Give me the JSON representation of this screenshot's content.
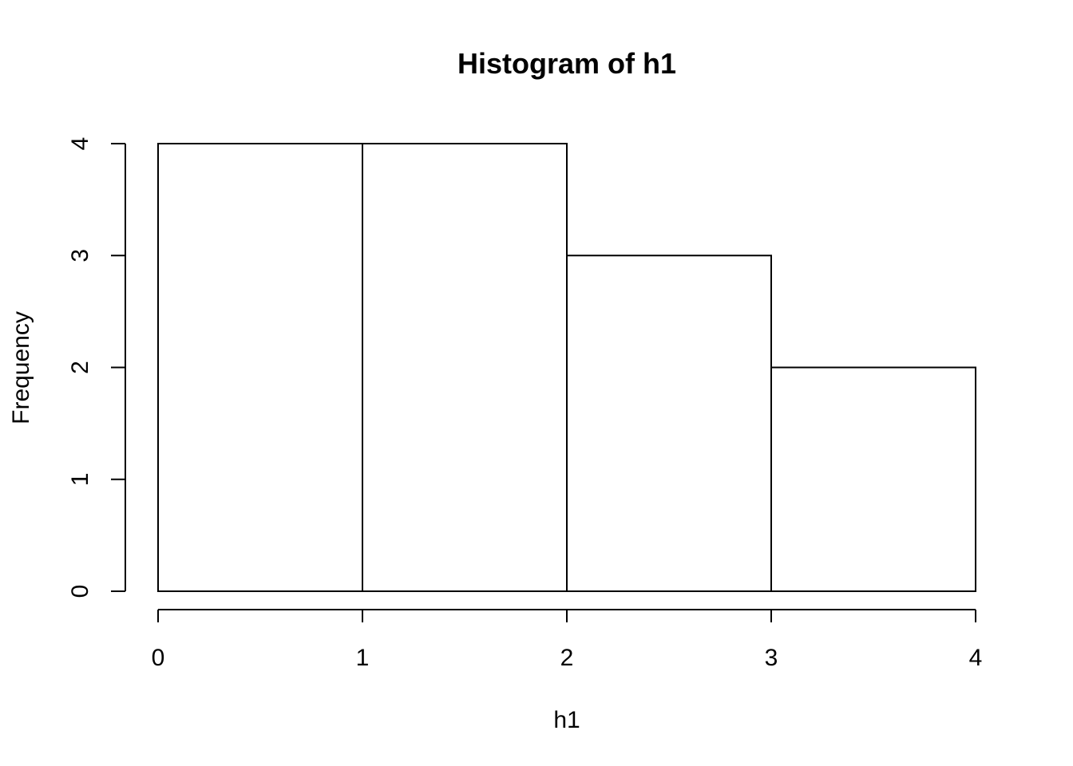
{
  "chart_data": {
    "type": "bar",
    "title": "Histogram of h1",
    "xlabel": "h1",
    "ylabel": "Frequency",
    "bins": [
      [
        0,
        1
      ],
      [
        1,
        2
      ],
      [
        2,
        3
      ],
      [
        3,
        4
      ]
    ],
    "values": [
      4,
      4,
      3,
      2
    ],
    "xlim": [
      0,
      4
    ],
    "ylim": [
      0,
      4
    ],
    "x_ticks": [
      0,
      1,
      2,
      3,
      4
    ],
    "y_ticks": [
      0,
      1,
      2,
      3,
      4
    ],
    "grid": false,
    "legend": "none"
  }
}
